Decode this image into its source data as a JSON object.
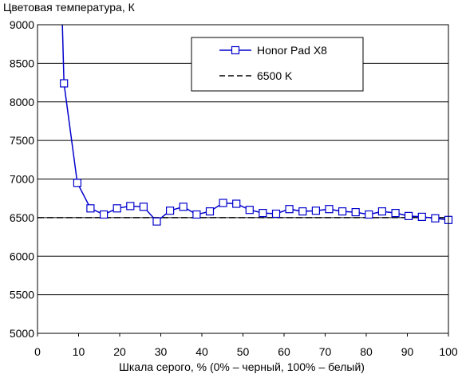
{
  "chart_data": {
    "type": "line",
    "ylabel": "Цветовая температура, К",
    "xlabel": "Шкала серого, % (0% – черный, 100% – белый)",
    "xlim": [
      0,
      100
    ],
    "ylim": [
      5000,
      9000
    ],
    "x_ticks": [
      "0",
      "10",
      "20",
      "30",
      "40",
      "50",
      "60",
      "70",
      "80",
      "90",
      "100"
    ],
    "y_ticks": [
      "5000",
      "5500",
      "6000",
      "6500",
      "7000",
      "7500",
      "8000",
      "8500",
      "9000"
    ],
    "grid": "horizontal",
    "legend_position": "top-right",
    "series": [
      {
        "name": "Honor Pad X8",
        "color": "#0000cc",
        "marker": "open-square",
        "x": [
          6.45,
          9.68,
          12.9,
          16.13,
          19.35,
          22.58,
          25.81,
          29.03,
          32.26,
          35.48,
          38.71,
          41.94,
          45.16,
          48.39,
          51.61,
          54.84,
          58.06,
          61.29,
          64.52,
          67.74,
          70.97,
          74.19,
          77.42,
          80.65,
          83.87,
          87.1,
          90.32,
          93.55,
          96.77,
          100
        ],
        "y": [
          8240,
          6950,
          6620,
          6540,
          6620,
          6650,
          6640,
          6450,
          6590,
          6640,
          6540,
          6580,
          6690,
          6680,
          6600,
          6560,
          6550,
          6610,
          6580,
          6590,
          6610,
          6580,
          6570,
          6540,
          6580,
          6560,
          6520,
          6510,
          6490,
          6470
        ],
        "offscale_start": {
          "x": 6.0,
          "y": 9100
        }
      },
      {
        "name": "6500 K",
        "color": "#000000",
        "style": "dashed",
        "x": [
          0,
          100
        ],
        "y": [
          6500,
          6500
        ]
      }
    ]
  }
}
